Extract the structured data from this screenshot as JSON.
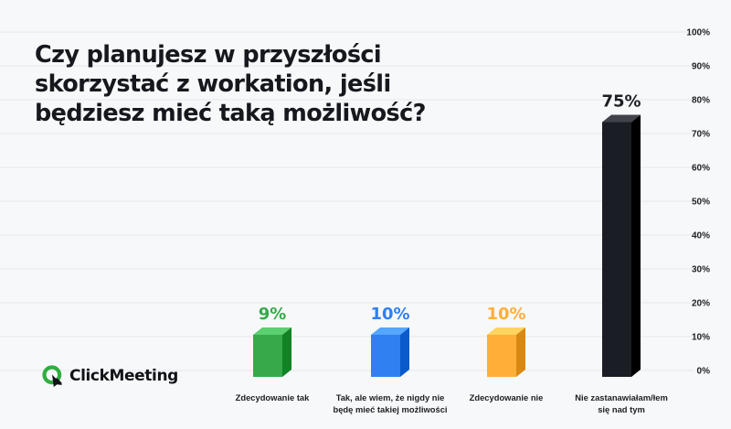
{
  "brand": {
    "name": "ClickMeeting",
    "accent": "#2fae3f"
  },
  "chart_data": {
    "type": "bar",
    "title": "Czy planujesz w przyszłości skorzystać z workation, jeśli będziesz mieć taką możliwość?",
    "title_lines": [
      "Czy planujesz w przyszłości",
      "skorzystać z workation, jeśli",
      "będziesz mieć taką możliwość?"
    ],
    "categories": [
      "Zdecydowanie tak",
      "Tak, ale wiem, że nigdy nie będę mieć takiej możliwości",
      "Zdecydowanie nie",
      "Nie zastanawiałam/łem się nad tym"
    ],
    "category_label_lines": [
      [
        "Zdecydowanie tak"
      ],
      [
        "Tak, ale wiem, że nigdy nie",
        "będę mieć takiej możliwości"
      ],
      [
        "Zdecydowanie nie"
      ],
      [
        "Nie zastanawiałam/łem",
        "się nad tym"
      ]
    ],
    "values": [
      9,
      10,
      10,
      75
    ],
    "value_labels": [
      "9%",
      "10%",
      "10%",
      "75%"
    ],
    "colors": [
      "#36a94a",
      "#2f80f0",
      "#ffae38",
      "#1a1d24"
    ],
    "ylim": [
      0,
      100
    ],
    "y_ticks": [
      0,
      10,
      20,
      30,
      40,
      50,
      60,
      70,
      80,
      90,
      100
    ],
    "y_tick_labels": [
      "0%",
      "10%",
      "20%",
      "30%",
      "40%",
      "50%",
      "60%",
      "70%",
      "80%",
      "90%",
      "100%"
    ],
    "xlabel": "",
    "ylabel": "",
    "grid": true,
    "legend": false,
    "axis_position": "right"
  }
}
